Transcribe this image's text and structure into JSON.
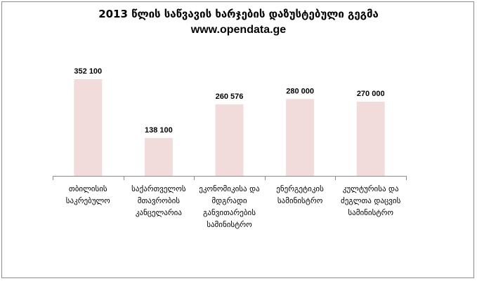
{
  "chart_data": {
    "type": "bar",
    "title": "2013 წლის საწვავის ხარჯების დაზუსტებული გეგმა",
    "subtitle": "www.opendata.ge",
    "categories": [
      [
        "თბილისის",
        "საკრებულო"
      ],
      [
        "საქართველოს",
        "მთავრობის",
        "კანცელარია"
      ],
      [
        "ეკონომიკისა  და",
        "მდგრადი",
        "განვითარების",
        "სამინისტრო"
      ],
      [
        "ენერგეტიკის",
        "სამინისტრო"
      ],
      [
        "კულტურისა  და",
        "ძეგლთა  დაცვის",
        "სამინისტრო"
      ]
    ],
    "values": [
      352100,
      138100,
      260576,
      280000,
      270000
    ],
    "value_labels": [
      "352 100",
      "138 100",
      "260 576",
      "280 000",
      "270 000"
    ],
    "ylim": [
      0,
      400000
    ],
    "grid": false,
    "legend": "none",
    "bar_color": "#f2dcdb",
    "axis_color": "#8c8c8c"
  }
}
